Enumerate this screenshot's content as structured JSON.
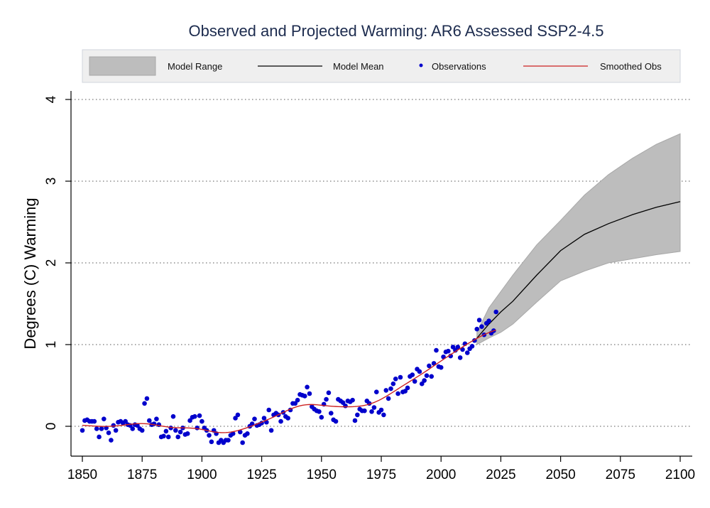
{
  "chart_data": {
    "type": "line",
    "title": "Observed and Projected Warming: AR6 Assessed SSP2-4.5",
    "xlabel": "",
    "ylabel": "Degrees (C) Warming",
    "xlim": [
      1850,
      2100
    ],
    "ylim": [
      -0.35,
      4.1
    ],
    "xticks": [
      "1850",
      "1875",
      "1900",
      "1925",
      "1950",
      "1975",
      "2000",
      "2025",
      "2050",
      "2075",
      "2100"
    ],
    "yticks": [
      "0",
      "1",
      "2",
      "3",
      "4"
    ],
    "grid": "horizontal dotted",
    "legend_position": "top",
    "legend": [
      "Model Range",
      "Model Mean",
      "Observations",
      "Smoothed Obs"
    ],
    "colors": {
      "range": "#bdbdbd",
      "mean": "#000000",
      "observations": "#0000cc",
      "smoothed": "#cc2222",
      "title": "#1c2b4e"
    },
    "observations": {
      "start_year": 1850,
      "values": [
        -0.05,
        0.07,
        0.08,
        0.06,
        0.06,
        0.06,
        -0.03,
        -0.13,
        -0.03,
        0.09,
        -0.02,
        -0.08,
        -0.17,
        0.01,
        -0.05,
        0.05,
        0.06,
        0.04,
        0.06,
        0.02,
        0.01,
        -0.03,
        0.02,
        0.01,
        -0.03,
        -0.05,
        0.28,
        0.34,
        0.07,
        0.02,
        0.03,
        0.09,
        0.02,
        -0.13,
        -0.12,
        -0.06,
        -0.13,
        -0.02,
        0.12,
        -0.05,
        -0.13,
        -0.07,
        -0.02,
        -0.1,
        -0.09,
        0.07,
        0.11,
        0.12,
        -0.02,
        0.13,
        0.06,
        -0.02,
        -0.05,
        -0.11,
        -0.19,
        -0.05,
        -0.09,
        -0.2,
        -0.17,
        -0.2,
        -0.17,
        -0.17,
        -0.11,
        -0.09,
        0.1,
        0.14,
        -0.07,
        -0.2,
        -0.11,
        -0.09,
        0.0,
        0.03,
        0.09,
        0.01,
        0.02,
        0.04,
        0.1,
        0.05,
        0.2,
        -0.05,
        0.14,
        0.16,
        0.14,
        0.06,
        0.17,
        0.12,
        0.1,
        0.2,
        0.28,
        0.28,
        0.32,
        0.39,
        0.38,
        0.37,
        0.48,
        0.4,
        0.24,
        0.21,
        0.19,
        0.18,
        0.11,
        0.27,
        0.33,
        0.41,
        0.16,
        0.08,
        0.06,
        0.33,
        0.31,
        0.29,
        0.25,
        0.31,
        0.3,
        0.32,
        0.07,
        0.14,
        0.21,
        0.19,
        0.19,
        0.31,
        0.28,
        0.18,
        0.23,
        0.42,
        0.17,
        0.2,
        0.14,
        0.44,
        0.34,
        0.46,
        0.52,
        0.58,
        0.4,
        0.6,
        0.42,
        0.43,
        0.47,
        0.61,
        0.63,
        0.55,
        0.7,
        0.67,
        0.52,
        0.56,
        0.62,
        0.74,
        0.61,
        0.77,
        0.93,
        0.73,
        0.72,
        0.85,
        0.91,
        0.92,
        0.86,
        0.97,
        0.93,
        0.97,
        0.84,
        0.94,
        1.01,
        0.9,
        0.95,
        0.98,
        1.05,
        1.19,
        1.3,
        1.22,
        1.12,
        1.26,
        1.29,
        1.14,
        1.17,
        1.4
      ]
    },
    "projection": {
      "years": [
        2015,
        2020,
        2025,
        2030,
        2040,
        2050,
        2060,
        2070,
        2080,
        2090,
        2100
      ],
      "mean": [
        1.08,
        1.25,
        1.4,
        1.53,
        1.85,
        2.15,
        2.35,
        2.48,
        2.59,
        2.68,
        2.75
      ],
      "upper": [
        1.15,
        1.45,
        1.65,
        1.85,
        2.22,
        2.52,
        2.83,
        3.08,
        3.28,
        3.45,
        3.58
      ],
      "lower": [
        1.0,
        1.08,
        1.15,
        1.25,
        1.52,
        1.78,
        1.9,
        2.0,
        2.05,
        2.1,
        2.14
      ]
    }
  }
}
